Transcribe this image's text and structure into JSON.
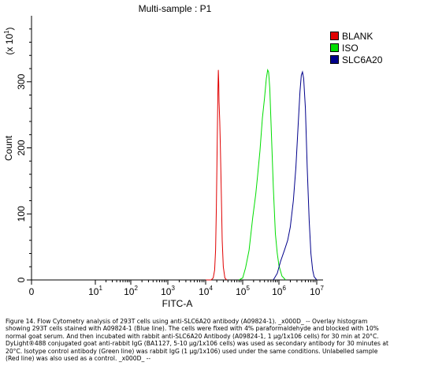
{
  "chart_data": {
    "type": "line",
    "title": "Multi-sample : P1",
    "xlabel": "FITC-A",
    "ylabel": "Count",
    "y_multiplier_label": "(x 10^1)",
    "x_scale": "log",
    "xlim": [
      0,
      10000000
    ],
    "ylim": [
      0,
      400
    ],
    "x_ticks": [
      {
        "label": "0",
        "value": 0
      },
      {
        "label": "10",
        "sup": "1",
        "value": 10
      },
      {
        "label": "10",
        "sup": "2",
        "value": 100
      },
      {
        "label": "10",
        "sup": "3",
        "value": 1000
      },
      {
        "label": "10",
        "sup": "4",
        "value": 10000
      },
      {
        "label": "10",
        "sup": "5",
        "value": 100000
      },
      {
        "label": "10",
        "sup": "6",
        "value": 1000000
      },
      {
        "label": "10",
        "sup": "7",
        "value": 10000000
      }
    ],
    "y_ticks": [
      {
        "label": "0",
        "value": 0
      },
      {
        "label": "100",
        "value": 100
      },
      {
        "label": "200",
        "value": 200
      },
      {
        "label": "300",
        "value": 300
      }
    ],
    "legend_position": "right",
    "series": [
      {
        "name": "BLANK",
        "color": "#e00000",
        "points": [
          [
            10000,
            0
          ],
          [
            14000,
            0
          ],
          [
            16000,
            3
          ],
          [
            17500,
            15
          ],
          [
            18500,
            45
          ],
          [
            19500,
            110
          ],
          [
            20500,
            210
          ],
          [
            21500,
            290
          ],
          [
            22000,
            318
          ],
          [
            22500,
            300
          ],
          [
            23000,
            270
          ],
          [
            24000,
            240
          ],
          [
            25000,
            200
          ],
          [
            26500,
            130
          ],
          [
            28000,
            60
          ],
          [
            30000,
            20
          ],
          [
            33000,
            3
          ],
          [
            37000,
            0
          ]
        ]
      },
      {
        "name": "ISO",
        "color": "#00dd00",
        "points": [
          [
            80000,
            0
          ],
          [
            100000,
            3
          ],
          [
            120000,
            18
          ],
          [
            150000,
            45
          ],
          [
            190000,
            95
          ],
          [
            230000,
            130
          ],
          [
            260000,
            160
          ],
          [
            300000,
            195
          ],
          [
            350000,
            245
          ],
          [
            400000,
            275
          ],
          [
            450000,
            305
          ],
          [
            490000,
            318
          ],
          [
            520000,
            315
          ],
          [
            560000,
            290
          ],
          [
            620000,
            220
          ],
          [
            700000,
            140
          ],
          [
            800000,
            70
          ],
          [
            900000,
            40
          ],
          [
            1000000,
            22
          ],
          [
            1200000,
            6
          ],
          [
            1500000,
            0
          ]
        ]
      },
      {
        "name": "SLC6A20",
        "color": "#00008b",
        "points": [
          [
            700000,
            0
          ],
          [
            900000,
            10
          ],
          [
            1100000,
            28
          ],
          [
            1400000,
            45
          ],
          [
            1700000,
            60
          ],
          [
            2000000,
            80
          ],
          [
            2400000,
            120
          ],
          [
            2800000,
            170
          ],
          [
            3200000,
            230
          ],
          [
            3600000,
            285
          ],
          [
            3900000,
            310
          ],
          [
            4200000,
            315
          ],
          [
            4500000,
            305
          ],
          [
            5000000,
            260
          ],
          [
            5600000,
            170
          ],
          [
            6300000,
            90
          ],
          [
            7000000,
            40
          ],
          [
            7800000,
            15
          ],
          [
            8500000,
            5
          ],
          [
            10000000,
            0
          ]
        ]
      }
    ]
  },
  "caption": {
    "lines": [
      "Figure 14. Flow Cytometry analysis of 293T cells using anti-SLC6A20 antibody (A09824-1). _x000D_ -- Overlay histogram",
      "showing 293T cells stained with A09824-1 (Blue line). The cells were fixed with 4% paraformaldehyde and blocked with 10%",
      "normal goat serum.  And then incubated with rabbit anti-SLC6A20 Antibody (A09824-1, 1 µg/1x106 cells) for 30 min at 20°C.",
      "DyLight®488 conjugated goat anti-rabbit IgG (BA1127, 5-10 µg/1x106 cells) was used as secondary antibody for 30 minutes at",
      "20°C. Isotype control antibody (Green line) was rabbit IgG (1 µg/1x106) used under the same conditions. Unlabelled sample",
      "(Red line) was also used as a control. _x000D_ --"
    ]
  }
}
